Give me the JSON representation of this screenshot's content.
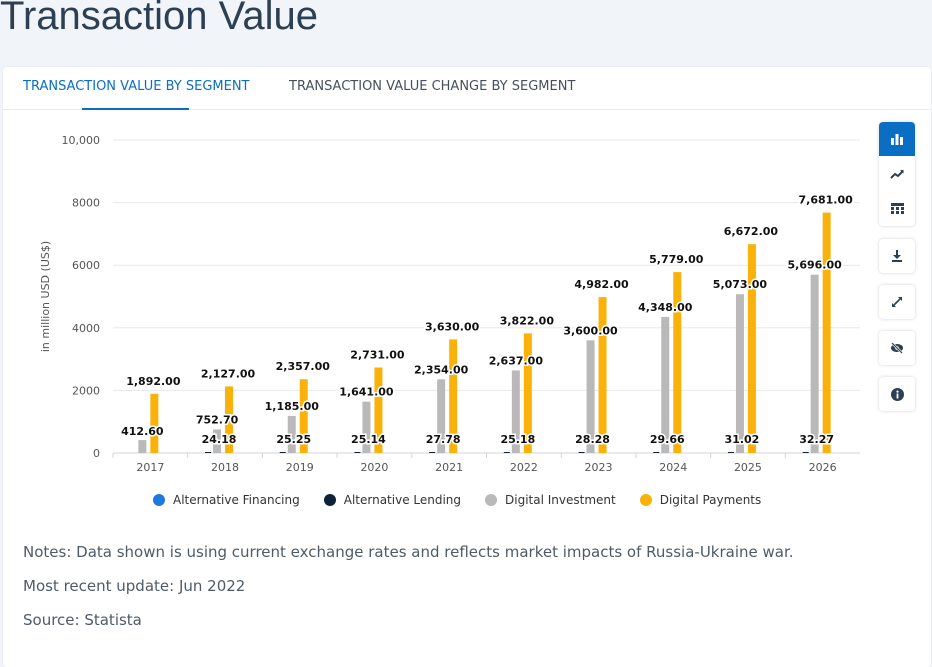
{
  "page": {
    "title": "Transaction Value"
  },
  "tabs": [
    {
      "label": "TRANSACTION VALUE BY SEGMENT",
      "active": true
    },
    {
      "label": "TRANSACTION VALUE CHANGE BY SEGMENT",
      "active": false
    }
  ],
  "chart_data": {
    "type": "bar",
    "ylabel": "in million USD (US$)",
    "ylim": [
      0,
      10000
    ],
    "yticks": [
      0,
      2000,
      4000,
      6000,
      8000,
      10000
    ],
    "ytick_labels": [
      "0",
      "2000",
      "4000",
      "6000",
      "8000",
      "10,000"
    ],
    "categories": [
      "2017",
      "2018",
      "2019",
      "2020",
      "2021",
      "2022",
      "2023",
      "2024",
      "2025",
      "2026"
    ],
    "series": [
      {
        "name": "Alternative Financing",
        "color": "#1f77e0",
        "values": [
          null,
          null,
          null,
          null,
          null,
          null,
          null,
          null,
          null,
          null
        ]
      },
      {
        "name": "Alternative Lending",
        "color": "#0d2336",
        "values": [
          null,
          24.18,
          25.25,
          25.14,
          27.78,
          25.18,
          28.28,
          29.66,
          31.02,
          32.27
        ],
        "labels": [
          "",
          "24.18",
          "25.25",
          "25.14",
          "27.78",
          "25.18",
          "28.28",
          "29.66",
          "31.02",
          "32.27"
        ]
      },
      {
        "name": "Digital Investment",
        "color": "#b9b9b9",
        "values": [
          412.6,
          752.7,
          1185,
          1641,
          2354,
          2637,
          3600,
          4348,
          5073,
          5696
        ],
        "labels": [
          "412.60",
          "752.70",
          "1,185.00",
          "1,641.00",
          "2,354.00",
          "2,637.00",
          "3,600.00",
          "4,348.00",
          "5,073.00",
          "5,696.00"
        ]
      },
      {
        "name": "Digital Payments",
        "color": "#fab20b",
        "values": [
          1892,
          2127,
          2357,
          2731,
          3630,
          3822,
          4982,
          5779,
          6672,
          7681
        ],
        "labels": [
          "1,892.00",
          "2,127.00",
          "2,357.00",
          "2,731.00",
          "3,630.00",
          "3,822.00",
          "4,982.00",
          "5,779.00",
          "6,672.00",
          "7,681.00"
        ]
      }
    ],
    "legend_position": "bottom"
  },
  "notes": {
    "line1": "Notes: Data shown is using current exchange rates and reflects market impacts of Russia-Ukraine war.",
    "line2": "Most recent update: Jun 2022",
    "line3": "Source: Statista"
  },
  "toolbar": {
    "bar_chart": "bar-chart-icon",
    "line_chart": "trend-icon",
    "table": "table-icon",
    "download": "download-icon",
    "fullscreen": "expand-icon",
    "hide": "eye-off-icon",
    "info": "info-icon",
    "accent": "#0a6fc2"
  }
}
